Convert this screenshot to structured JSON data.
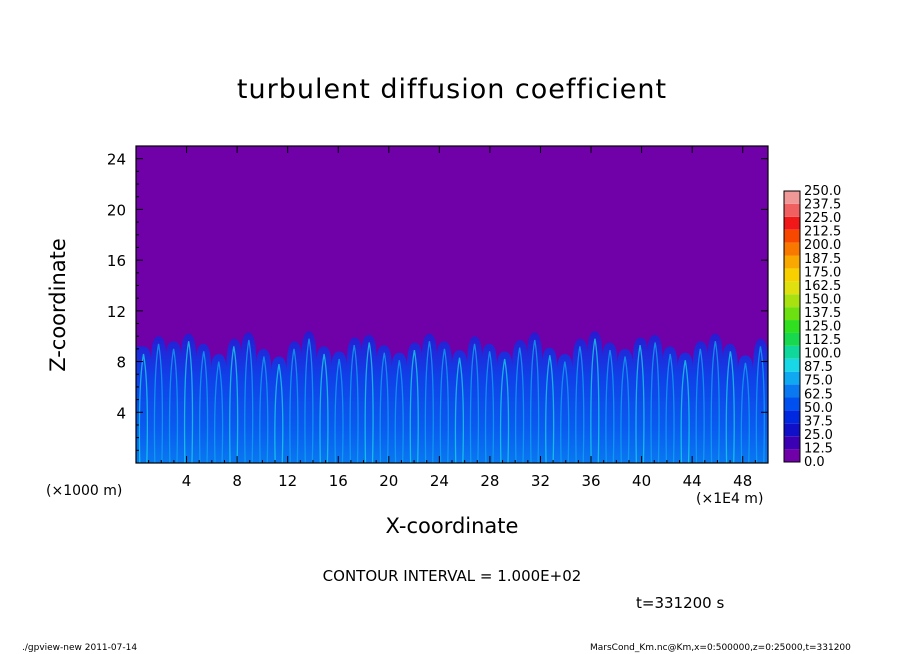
{
  "chart_data": {
    "type": "heatmap",
    "title": "turbulent diffusion coefficient",
    "xlabel": "X-coordinate",
    "ylabel": "Z-coordinate",
    "x_unit": "(×1E4 m)",
    "y_unit": "(×1000 m)",
    "xlim": [
      0,
      50
    ],
    "ylim": [
      0,
      25
    ],
    "x_ticks": [
      4,
      8,
      12,
      16,
      20,
      24,
      28,
      32,
      36,
      40,
      44,
      48
    ],
    "x_tick_labels": [
      "4",
      "8",
      "12",
      "16",
      "20",
      "24",
      "28",
      "32",
      "36",
      "40",
      "44",
      "48"
    ],
    "y_ticks": [
      4,
      8,
      12,
      16,
      20,
      24
    ],
    "y_tick_labels": [
      "4",
      "8",
      "12",
      "16",
      "20",
      "24"
    ],
    "background_value_color": "#7000a8",
    "turbulent_layer_top": [
      9.2,
      10.0,
      9.6,
      10.2,
      9.4,
      8.6,
      9.8,
      10.3,
      9.0,
      8.4,
      9.6,
      10.4,
      9.2,
      8.8,
      9.9,
      10.1,
      9.3,
      8.7,
      9.5,
      10.2,
      9.6,
      8.9,
      10.0,
      9.4,
      8.8,
      9.7,
      10.3,
      9.1,
      8.6,
      9.8,
      10.4,
      9.5,
      9.0,
      9.9,
      10.1,
      9.2,
      8.7,
      9.6,
      10.2,
      9.4,
      8.5,
      9.8
    ],
    "colorbar": {
      "levels": [
        "0.0",
        "12.5",
        "25.0",
        "37.5",
        "50.0",
        "62.5",
        "75.0",
        "87.5",
        "100.0",
        "112.5",
        "125.0",
        "137.5",
        "150.0",
        "162.5",
        "175.0",
        "187.5",
        "200.0",
        "212.5",
        "225.0",
        "237.5",
        "250.0"
      ],
      "colors": [
        "#7000a8",
        "#3c00b4",
        "#1010c8",
        "#0028e0",
        "#0050f0",
        "#0a78f0",
        "#10a8f0",
        "#18d8e8",
        "#10d89c",
        "#18d850",
        "#30e020",
        "#6ce010",
        "#a8e010",
        "#e0e010",
        "#f8d000",
        "#f8a800",
        "#f87800",
        "#f84800",
        "#f01818",
        "#f06060",
        "#f09898"
      ]
    }
  },
  "contour_interval": "CONTOUR INTERVAL = 1.000E+02",
  "time_label": "t=331200 s",
  "footer": {
    "left": "./gpview-new  2011-07-14",
    "right": "MarsCond_Km.nc@Km,x=0:500000,z=0:25000,t=331200"
  }
}
